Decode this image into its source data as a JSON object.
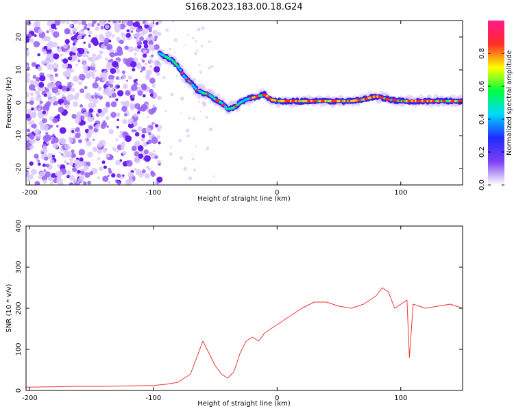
{
  "title": "S168.2023.183.00.18.G24",
  "chart_data": [
    {
      "type": "heatmap",
      "xlabel": "Height of straight line (km)",
      "ylabel": "Frequency (Hz)",
      "xlim": [
        -203,
        150
      ],
      "ylim": [
        -25,
        25
      ],
      "xticks": [
        -200,
        -100,
        0,
        100
      ],
      "yticks": [
        -20,
        -10,
        0,
        10,
        20
      ],
      "colorbar": {
        "label": "Normalized spectral amplitude",
        "range": [
          0,
          1
        ],
        "ticks": [
          0.0,
          0.2,
          0.4,
          0.6,
          0.8
        ],
        "tick_labels": [
          "0.0",
          "0.2",
          "0.4",
          "0.6",
          "0.8"
        ],
        "colors": [
          "#ffffff",
          "#7b3ff2",
          "#1f2bff",
          "#00d8ff",
          "#00ff40",
          "#ffff00",
          "#ff2a2a",
          "#ff1a8c"
        ]
      },
      "noise_region_x": [
        -203,
        -95
      ],
      "ridge": {
        "x": [
          -95,
          -90,
          -85,
          -80,
          -75,
          -70,
          -65,
          -60,
          -55,
          -50,
          -45,
          -40,
          -35,
          -30,
          -25,
          -20,
          -15,
          -10,
          -5,
          0,
          20,
          40,
          60,
          70,
          80,
          90,
          100,
          110,
          130,
          150
        ],
        "y": [
          15,
          14,
          13,
          11,
          8,
          6,
          4,
          3,
          2.5,
          1,
          0,
          -2,
          -1.5,
          0,
          1,
          1.5,
          2,
          2.5,
          1,
          0.5,
          0.5,
          0.5,
          0.5,
          1,
          2,
          1,
          0.5,
          0.5,
          0.5,
          0.5
        ]
      }
    },
    {
      "type": "line",
      "xlabel": "Height of straight line (km)",
      "ylabel": "SNR (10 * v/v)",
      "xlim": [
        -203,
        150
      ],
      "ylim": [
        0,
        400
      ],
      "xticks": [
        -200,
        -100,
        0,
        100
      ],
      "yticks": [
        0,
        100,
        200,
        300,
        400
      ],
      "color": "#ee3333",
      "series": [
        {
          "x": [
            -203,
            -180,
            -160,
            -140,
            -120,
            -100,
            -90,
            -80,
            -70,
            -65,
            -60,
            -55,
            -50,
            -45,
            -40,
            -35,
            -30,
            -25,
            -20,
            -15,
            -10,
            -5,
            0,
            10,
            20,
            30,
            40,
            50,
            60,
            70,
            80,
            85,
            90,
            95,
            100,
            105,
            107,
            110,
            120,
            130,
            140,
            150
          ],
          "values": [
            8,
            9,
            10,
            10,
            11,
            12,
            15,
            20,
            40,
            80,
            120,
            90,
            60,
            40,
            30,
            45,
            90,
            120,
            130,
            120,
            140,
            150,
            160,
            180,
            200,
            215,
            215,
            205,
            200,
            210,
            230,
            250,
            240,
            200,
            210,
            220,
            80,
            210,
            200,
            205,
            210,
            200
          ]
        }
      ]
    }
  ]
}
